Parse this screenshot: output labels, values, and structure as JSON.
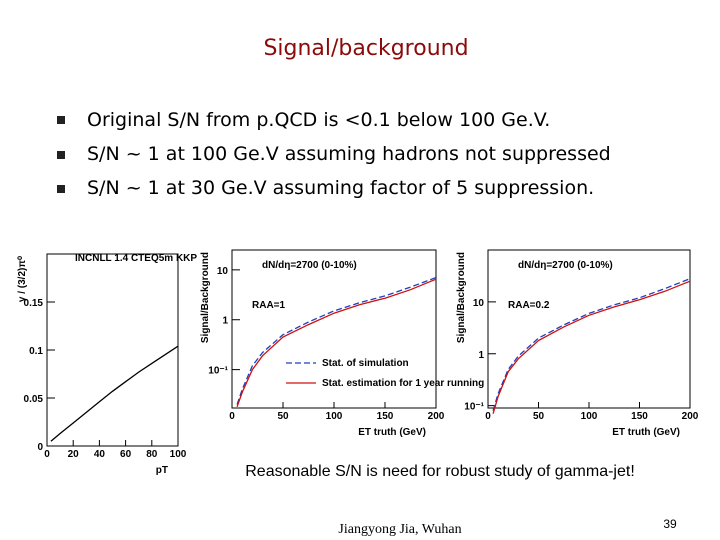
{
  "slide": {
    "title": "Signal/background",
    "bullets": [
      "Original S/N from p.QCD is <0.1 below 100 Ge.V.",
      "S/N ~ 1 at 100 Ge.V assuming hadrons not suppressed",
      "S/N ~ 1 at 30 Ge.V assuming factor of 5 suppression."
    ],
    "caption": "Reasonable S/N is need for robust study of gamma-jet!",
    "footer": "Jiangyong Jia, Wuhan",
    "page": "39"
  },
  "chart_data": [
    {
      "type": "line",
      "annotations": [
        "INCNLL 1.4 CTEQ5m KKP"
      ],
      "xlabel": "pT",
      "ylabel": "γ / (3/2)π⁰",
      "x": [
        3,
        10,
        20,
        30,
        40,
        50,
        60,
        70,
        80,
        90,
        100
      ],
      "series": [
        {
          "color": "#000000",
          "values": [
            0.005,
            0.013,
            0.024,
            0.035,
            0.046,
            0.057,
            0.067,
            0.077,
            0.086,
            0.095,
            0.104
          ]
        }
      ],
      "xlim": [
        0,
        100
      ],
      "xticks": [
        0,
        20,
        40,
        60,
        80,
        100
      ],
      "ylim": [
        0,
        0.2
      ],
      "yticks": [
        0,
        0.05,
        0.1,
        0.15
      ]
    },
    {
      "type": "line",
      "log_y": true,
      "annotations": [
        "dN/dη=2700 (0-10%)",
        "RAA=1"
      ],
      "xlabel": "ET truth (GeV)",
      "ylabel": "Signal/Background",
      "x": [
        5,
        10,
        20,
        30,
        50,
        75,
        100,
        125,
        150,
        175,
        200
      ],
      "series": [
        {
          "name": "Stat. of simulation",
          "color": "#1f3fbf",
          "dashed": true,
          "values": [
            0.02,
            0.04,
            0.12,
            0.22,
            0.5,
            0.9,
            1.5,
            2.2,
            3,
            4.5,
            7
          ]
        },
        {
          "name": "Stat. estimation for 1 year running",
          "color": "#d01010",
          "values": [
            0.018,
            0.035,
            0.1,
            0.19,
            0.45,
            0.8,
            1.35,
            2,
            2.7,
            4,
            6.5
          ]
        }
      ],
      "legend": "lower right",
      "xlim": [
        0,
        200
      ],
      "xticks": [
        0,
        50,
        100,
        150,
        200
      ],
      "ylim": [
        0.017,
        25
      ],
      "yticks": [
        {
          "value": 0.1,
          "label": "10⁻¹"
        },
        1,
        10
      ]
    },
    {
      "type": "line",
      "log_y": true,
      "annotations": [
        "dN/dη=2700 (0-10%)",
        "RAA=0.2"
      ],
      "xlabel": "ET truth (GeV)",
      "ylabel": "Signal/Background",
      "x": [
        5,
        10,
        20,
        30,
        50,
        75,
        100,
        125,
        150,
        175,
        200
      ],
      "series": [
        {
          "color": "#1f3fbf",
          "dashed": true,
          "values": [
            0.08,
            0.17,
            0.5,
            0.9,
            2,
            3.6,
            6,
            8.8,
            12,
            18,
            28
          ]
        },
        {
          "color": "#d01010",
          "values": [
            0.07,
            0.15,
            0.45,
            0.8,
            1.8,
            3.3,
            5.5,
            8,
            11,
            16,
            25
          ]
        }
      ],
      "xlim": [
        0,
        200
      ],
      "xticks": [
        0,
        50,
        100,
        150,
        200
      ],
      "ylim": [
        0.09,
        100
      ],
      "yticks": [
        {
          "value": 0.1,
          "label": "10⁻¹"
        },
        1,
        10
      ]
    }
  ]
}
